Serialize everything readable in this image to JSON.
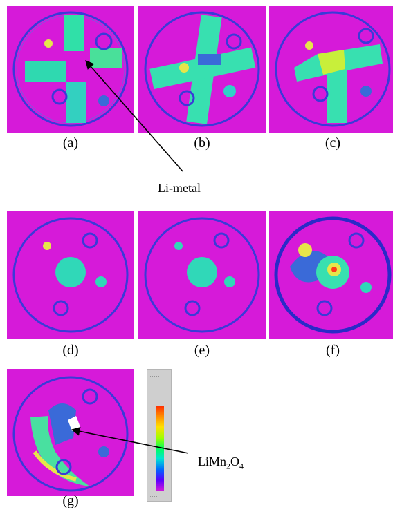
{
  "panels": [
    {
      "id": "a",
      "label": "(a)"
    },
    {
      "id": "b",
      "label": "(b)"
    },
    {
      "id": "c",
      "label": "(c)"
    },
    {
      "id": "d",
      "label": "(d)"
    },
    {
      "id": "e",
      "label": "(e)"
    },
    {
      "id": "f",
      "label": "(f)"
    },
    {
      "id": "g",
      "label": "(g)"
    }
  ],
  "annotations": {
    "li_metal": "Li-metal",
    "limn2o4_prefix": "LiMn",
    "limn2o4_sub1": "2",
    "limn2o4_mid": "O",
    "limn2o4_sub2": "4"
  },
  "colors": {
    "background": "#d61ad9",
    "ring": "#3a3ad8",
    "sample_green": "#2fe0a0",
    "sample_yellow": "#e6e64a"
  }
}
